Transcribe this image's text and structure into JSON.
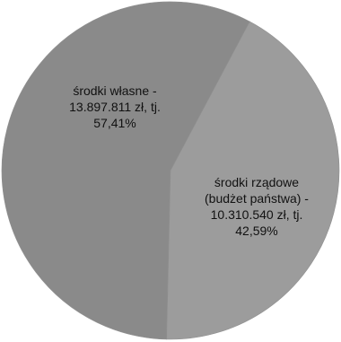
{
  "chart_data": {
    "type": "pie",
    "title": "",
    "slices": [
      {
        "label": "środki własne",
        "value": 13897811,
        "percent": 57.41,
        "color": "#8a8a8a",
        "label_lines": [
          "środki własne -",
          "13.897.811 zł, tj.",
          "57,41%"
        ]
      },
      {
        "label": "środki rządowe (budżet państwa)",
        "value": 10310540,
        "percent": 42.59,
        "color": "#9c9c9c",
        "label_lines": [
          "środki rządowe",
          "(budżet państwa) -",
          "10.310.540 zł, tj.",
          "42,59%"
        ]
      }
    ],
    "legend": "none"
  }
}
